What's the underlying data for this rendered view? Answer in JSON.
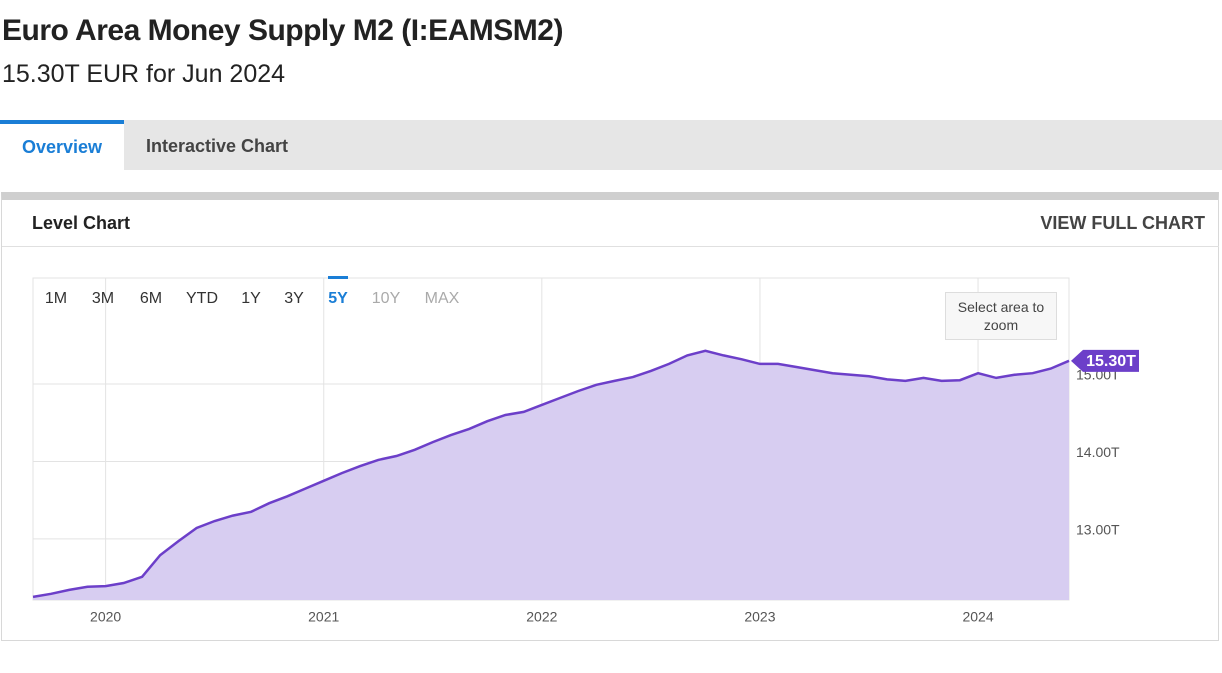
{
  "header": {
    "title": "Euro Area Money Supply M2 (I:EAMSM2)",
    "subtitle": "15.30T EUR for Jun 2024"
  },
  "tabs": [
    "Overview",
    "Interactive Chart"
  ],
  "active_tab": 0,
  "panel": {
    "title": "Level Chart",
    "link": "VIEW FULL CHART"
  },
  "range_buttons": [
    "1M",
    "3M",
    "6M",
    "YTD",
    "1Y",
    "3Y",
    "5Y",
    "10Y",
    "MAX"
  ],
  "active_range": 6,
  "disabled_ranges": [
    7,
    8
  ],
  "zoom_hint": "Select area to zoom",
  "chart_data": {
    "type": "area",
    "x": [
      2019.667,
      2019.75,
      2019.833,
      2019.917,
      2020,
      2020.083,
      2020.167,
      2020.25,
      2020.333,
      2020.417,
      2020.5,
      2020.583,
      2020.667,
      2020.75,
      2020.833,
      2020.917,
      2021,
      2021.083,
      2021.167,
      2021.25,
      2021.333,
      2021.417,
      2021.5,
      2021.583,
      2021.667,
      2021.75,
      2021.833,
      2021.917,
      2022,
      2022.083,
      2022.167,
      2022.25,
      2022.333,
      2022.417,
      2022.5,
      2022.583,
      2022.667,
      2022.75,
      2022.833,
      2022.917,
      2023,
      2023.083,
      2023.167,
      2023.25,
      2023.333,
      2023.417,
      2023.5,
      2023.583,
      2023.667,
      2023.75,
      2023.833,
      2023.917,
      2024,
      2024.083,
      2024.167,
      2024.25,
      2024.333,
      2024.417
    ],
    "values": [
      12.25,
      12.29,
      12.34,
      12.38,
      12.39,
      12.43,
      12.51,
      12.79,
      12.97,
      13.14,
      13.23,
      13.3,
      13.35,
      13.46,
      13.55,
      13.65,
      13.75,
      13.85,
      13.94,
      14.02,
      14.07,
      14.15,
      14.25,
      14.34,
      14.42,
      14.52,
      14.6,
      14.64,
      14.73,
      14.82,
      14.91,
      14.99,
      15.04,
      15.09,
      15.17,
      15.26,
      15.37,
      15.43,
      15.37,
      15.32,
      15.26,
      15.26,
      15.22,
      15.18,
      15.14,
      15.12,
      15.1,
      15.06,
      15.04,
      15.08,
      15.04,
      15.05,
      15.14,
      15.08,
      15.12,
      15.14,
      15.2,
      15.3
    ],
    "color": "#6c3fc9",
    "fill": "#d7cdf1",
    "xlim": [
      2019.667,
      2024.417
    ],
    "xticks": [
      2020,
      2021,
      2022,
      2023,
      2024
    ],
    "ylim": [
      12.21,
      16.37
    ],
    "yticks": [
      {
        "value": 13,
        "label": "13.00T"
      },
      {
        "value": 14,
        "label": "14.00T"
      },
      {
        "value": 15,
        "label": "15.00T"
      }
    ],
    "grid": true,
    "last_value_label": "15.30T"
  }
}
